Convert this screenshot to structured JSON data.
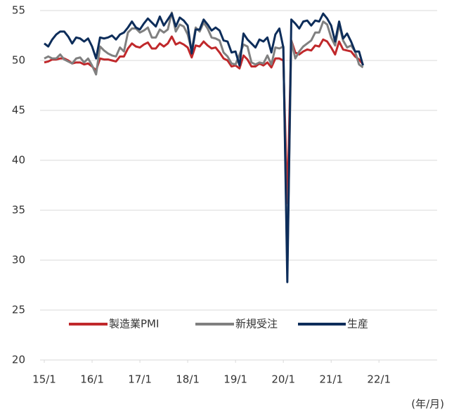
{
  "chart_data": {
    "type": "line",
    "x": [
      0,
      1,
      2,
      3,
      4,
      5,
      6,
      7,
      8,
      9,
      10,
      11,
      12,
      13,
      14,
      15,
      16,
      17,
      18,
      19,
      20,
      21,
      22,
      23,
      24,
      25,
      26,
      27,
      28,
      29,
      30,
      31,
      32,
      33,
      34,
      35,
      36,
      37,
      38,
      39,
      40,
      41,
      42,
      43,
      44,
      45,
      46,
      47,
      48,
      49,
      50,
      51,
      52,
      53,
      54,
      55,
      56,
      57,
      58,
      59,
      60,
      61,
      62,
      63,
      64,
      65,
      66,
      67,
      68,
      69,
      70,
      71,
      72,
      73,
      74,
      75,
      76,
      77,
      78,
      79,
      80
    ],
    "series": [
      {
        "name": "製造業PMI",
        "color": "#c0282b",
        "values": [
          49.8,
          49.9,
          50.1,
          50.1,
          50.2,
          50.2,
          50.0,
          49.7,
          49.8,
          49.8,
          49.6,
          49.7,
          49.4,
          49.0,
          50.2,
          50.1,
          50.1,
          50.0,
          49.9,
          50.4,
          50.4,
          51.2,
          51.7,
          51.4,
          51.3,
          51.6,
          51.8,
          51.2,
          51.2,
          51.7,
          51.4,
          51.7,
          52.4,
          51.6,
          51.8,
          51.6,
          51.3,
          50.3,
          51.5,
          51.4,
          51.9,
          51.5,
          51.2,
          51.3,
          50.8,
          50.2,
          50.0,
          49.4,
          49.5,
          49.2,
          50.5,
          50.1,
          49.4,
          49.4,
          49.7,
          49.5,
          49.8,
          49.3,
          50.2,
          50.2,
          50.0,
          35.7,
          52.0,
          50.8,
          50.6,
          50.9,
          51.1,
          51.0,
          51.5,
          51.4,
          52.1,
          51.9,
          51.3,
          50.6,
          51.9,
          51.1,
          51.0,
          50.9,
          50.4,
          50.1,
          49.6
        ]
      },
      {
        "name": "新規受注",
        "color": "#808080",
        "values": [
          50.2,
          50.4,
          50.2,
          50.2,
          50.6,
          50.1,
          49.9,
          49.7,
          50.2,
          50.3,
          49.8,
          50.2,
          49.5,
          48.6,
          51.4,
          51.0,
          50.7,
          50.5,
          50.4,
          51.3,
          50.9,
          52.8,
          53.2,
          53.2,
          52.8,
          53.0,
          53.3,
          52.3,
          52.3,
          53.1,
          52.8,
          53.1,
          54.8,
          52.9,
          53.6,
          53.4,
          52.6,
          51.0,
          53.3,
          52.9,
          53.8,
          53.2,
          52.3,
          52.2,
          52.0,
          50.8,
          50.4,
          49.7,
          49.6,
          50.6,
          51.6,
          51.4,
          49.8,
          49.6,
          49.8,
          49.7,
          50.5,
          49.6,
          51.3,
          51.2,
          51.4,
          29.3,
          52.0,
          50.2,
          50.9,
          51.4,
          51.7,
          52.0,
          52.8,
          52.8,
          53.9,
          53.6,
          52.3,
          51.5,
          53.6,
          52.0,
          51.3,
          51.5,
          50.9,
          49.6,
          49.3
        ]
      },
      {
        "name": "生産",
        "color": "#0d2d5a",
        "values": [
          51.7,
          51.4,
          52.1,
          52.6,
          52.9,
          52.9,
          52.4,
          51.7,
          52.3,
          52.2,
          51.9,
          52.2,
          51.4,
          50.2,
          52.3,
          52.2,
          52.3,
          52.5,
          52.1,
          52.6,
          52.8,
          53.3,
          53.9,
          53.3,
          53.1,
          53.7,
          54.2,
          53.8,
          53.4,
          54.4,
          53.5,
          54.1,
          54.7,
          53.4,
          54.3,
          54.0,
          53.5,
          50.7,
          53.1,
          53.1,
          54.1,
          53.6,
          53.0,
          53.3,
          53.0,
          52.0,
          51.9,
          50.8,
          50.9,
          49.5,
          52.7,
          52.1,
          51.7,
          51.3,
          52.1,
          51.9,
          52.3,
          50.8,
          52.6,
          53.2,
          51.3,
          27.8,
          54.1,
          53.7,
          53.2,
          53.9,
          54.0,
          53.5,
          54.0,
          53.9,
          54.7,
          54.2,
          53.5,
          51.9,
          53.9,
          52.2,
          52.7,
          51.9,
          50.9,
          50.9,
          49.5
        ]
      }
    ],
    "xlim": [
      0,
      98.6
    ],
    "xticks": [
      {
        "value": 0,
        "label": "15/1"
      },
      {
        "value": 12,
        "label": "16/1"
      },
      {
        "value": 24,
        "label": "17/1"
      },
      {
        "value": 36,
        "label": "18/1"
      },
      {
        "value": 48,
        "label": "19/1"
      },
      {
        "value": 60,
        "label": "20/1"
      },
      {
        "value": 72,
        "label": "21/1"
      },
      {
        "value": 84,
        "label": "22/1"
      }
    ],
    "ylim": [
      20,
      55
    ],
    "yticks": [
      20,
      25,
      30,
      35,
      40,
      45,
      50,
      55
    ],
    "grid": true,
    "x_unit": "(年/月)",
    "legend": "bottom"
  }
}
